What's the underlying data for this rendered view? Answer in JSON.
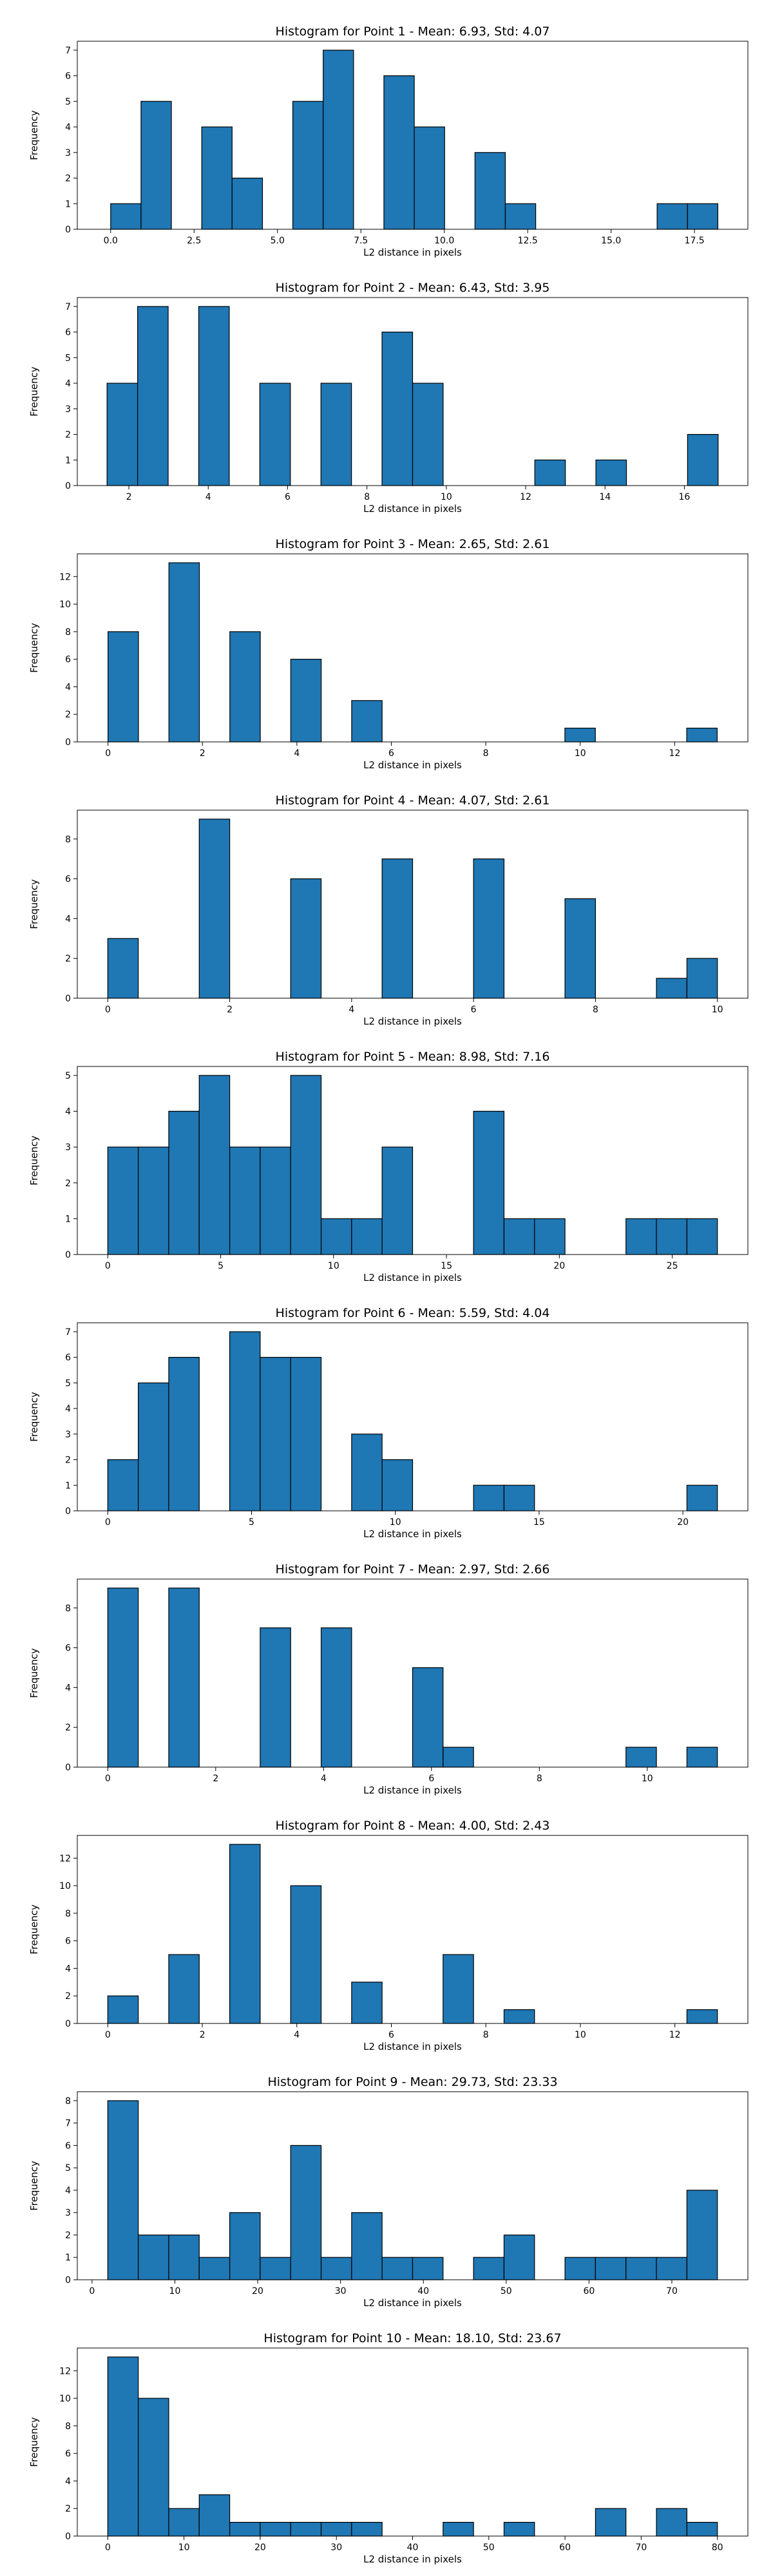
{
  "charts": [
    {
      "type": "bar",
      "title": "Histogram for Point 1 - Mean: 6.93, Std: 4.07",
      "xlabel": "L2 distance in pixels",
      "ylabel": "Frequency",
      "bins": {
        "start": 0.0,
        "width": 0.91,
        "counts": [
          1,
          5,
          0,
          4,
          2,
          0,
          5,
          7,
          0,
          6,
          4,
          0,
          3,
          1,
          0,
          0,
          0,
          0,
          1,
          1
        ]
      },
      "xlim": [
        -1.0,
        19.1
      ],
      "ylim": [
        0,
        7.35
      ],
      "xticks": [
        0.0,
        2.5,
        5.0,
        7.5,
        10.0,
        12.5,
        15.0,
        17.5
      ],
      "xtick_labels": [
        "0.0",
        "2.5",
        "5.0",
        "7.5",
        "10.0",
        "12.5",
        "15.0",
        "17.5"
      ],
      "yticks": [
        0,
        1,
        2,
        3,
        4,
        5,
        6,
        7
      ],
      "ytick_labels": [
        "0",
        "1",
        "2",
        "3",
        "4",
        "5",
        "6",
        "7"
      ]
    },
    {
      "type": "bar",
      "title": "Histogram for Point 2 - Mean: 6.43, Std: 3.95",
      "xlabel": "L2 distance in pixels",
      "ylabel": "Frequency",
      "bins": {
        "start": 1.45,
        "width": 0.77,
        "counts": [
          4,
          7,
          0,
          7,
          0,
          4,
          0,
          4,
          0,
          6,
          4,
          0,
          0,
          0,
          1,
          0,
          1,
          0,
          0,
          2
        ]
      },
      "xlim": [
        0.7,
        17.6
      ],
      "ylim": [
        0,
        7.35
      ],
      "xticks": [
        2,
        4,
        6,
        8,
        10,
        12,
        14,
        16
      ],
      "xtick_labels": [
        "2",
        "4",
        "6",
        "8",
        "10",
        "12",
        "14",
        "16"
      ],
      "yticks": [
        0,
        1,
        2,
        3,
        4,
        5,
        6,
        7
      ],
      "ytick_labels": [
        "0",
        "1",
        "2",
        "3",
        "4",
        "5",
        "6",
        "7"
      ]
    },
    {
      "type": "bar",
      "title": "Histogram for Point 3 - Mean: 2.65, Std: 2.61",
      "xlabel": "L2 distance in pixels",
      "ylabel": "Frequency",
      "bins": {
        "start": 0.0,
        "width": 0.645,
        "counts": [
          8,
          0,
          13,
          0,
          8,
          0,
          6,
          0,
          3,
          0,
          0,
          0,
          0,
          0,
          0,
          1,
          0,
          0,
          0,
          1
        ]
      },
      "xlim": [
        -0.65,
        13.55
      ],
      "ylim": [
        0,
        13.65
      ],
      "xticks": [
        0,
        2,
        4,
        6,
        8,
        10,
        12
      ],
      "xtick_labels": [
        "0",
        "2",
        "4",
        "6",
        "8",
        "10",
        "12"
      ],
      "yticks": [
        0,
        2,
        4,
        6,
        8,
        10,
        12
      ],
      "ytick_labels": [
        "0",
        "2",
        "4",
        "6",
        "8",
        "10",
        "12"
      ]
    },
    {
      "type": "bar",
      "title": "Histogram for Point 4 - Mean: 4.07, Std: 2.61",
      "xlabel": "L2 distance in pixels",
      "ylabel": "Frequency",
      "bins": {
        "start": 0.0,
        "width": 0.5,
        "counts": [
          3,
          0,
          0,
          9,
          0,
          0,
          6,
          0,
          0,
          7,
          0,
          0,
          7,
          0,
          0,
          5,
          0,
          0,
          1,
          2
        ]
      },
      "xlim": [
        -0.5,
        10.5
      ],
      "ylim": [
        0,
        9.45
      ],
      "xticks": [
        0,
        2,
        4,
        6,
        8,
        10
      ],
      "xtick_labels": [
        "0",
        "2",
        "4",
        "6",
        "8",
        "10"
      ],
      "yticks": [
        0,
        2,
        4,
        6,
        8
      ],
      "ytick_labels": [
        "0",
        "2",
        "4",
        "6",
        "8"
      ]
    },
    {
      "type": "bar",
      "title": "Histogram for Point 5 - Mean: 8.98, Std: 7.16",
      "xlabel": "L2 distance in pixels",
      "ylabel": "Frequency",
      "bins": {
        "start": 0.0,
        "width": 1.35,
        "counts": [
          3,
          3,
          4,
          5,
          3,
          3,
          5,
          1,
          1,
          3,
          0,
          0,
          4,
          1,
          1,
          0,
          0,
          1,
          1,
          1
        ]
      },
      "xlim": [
        -1.35,
        28.35
      ],
      "ylim": [
        0,
        5.25
      ],
      "xticks": [
        0,
        5,
        10,
        15,
        20,
        25
      ],
      "xtick_labels": [
        "0",
        "5",
        "10",
        "15",
        "20",
        "25"
      ],
      "yticks": [
        0,
        1,
        2,
        3,
        4,
        5
      ],
      "ytick_labels": [
        "0",
        "1",
        "2",
        "3",
        "4",
        "5"
      ]
    },
    {
      "type": "bar",
      "title": "Histogram for Point 6 - Mean: 5.59, Std: 4.04",
      "xlabel": "L2 distance in pixels",
      "ylabel": "Frequency",
      "bins": {
        "start": 0.0,
        "width": 1.06,
        "counts": [
          2,
          5,
          6,
          0,
          7,
          6,
          6,
          0,
          3,
          2,
          0,
          0,
          1,
          1,
          0,
          0,
          0,
          0,
          0,
          1
        ]
      },
      "xlim": [
        -1.06,
        22.26
      ],
      "ylim": [
        0,
        7.35
      ],
      "xticks": [
        0,
        5,
        10,
        15,
        20
      ],
      "xtick_labels": [
        "0",
        "5",
        "10",
        "15",
        "20"
      ],
      "yticks": [
        0,
        1,
        2,
        3,
        4,
        5,
        6,
        7
      ],
      "ytick_labels": [
        "0",
        "1",
        "2",
        "3",
        "4",
        "5",
        "6",
        "7"
      ]
    },
    {
      "type": "bar",
      "title": "Histogram for Point 7 - Mean: 2.97, Std: 2.66",
      "xlabel": "L2 distance in pixels",
      "ylabel": "Frequency",
      "bins": {
        "start": 0.0,
        "width": 0.565,
        "counts": [
          9,
          0,
          9,
          0,
          0,
          7,
          0,
          7,
          0,
          0,
          5,
          1,
          0,
          0,
          0,
          0,
          0,
          1,
          0,
          1
        ]
      },
      "xlim": [
        -0.565,
        11.865
      ],
      "ylim": [
        0,
        9.45
      ],
      "xticks": [
        0,
        2,
        4,
        6,
        8,
        10
      ],
      "xtick_labels": [
        "0",
        "2",
        "4",
        "6",
        "8",
        "10"
      ],
      "yticks": [
        0,
        2,
        4,
        6,
        8
      ],
      "ytick_labels": [
        "0",
        "2",
        "4",
        "6",
        "8"
      ]
    },
    {
      "type": "bar",
      "title": "Histogram for Point 8 - Mean: 4.00, Std: 2.43",
      "xlabel": "L2 distance in pixels",
      "ylabel": "Frequency",
      "bins": {
        "start": 0.0,
        "width": 0.645,
        "counts": [
          2,
          0,
          5,
          0,
          13,
          0,
          10,
          0,
          3,
          0,
          0,
          5,
          0,
          1,
          0,
          0,
          0,
          0,
          0,
          1
        ]
      },
      "xlim": [
        -0.645,
        13.545
      ],
      "ylim": [
        0,
        13.65
      ],
      "xticks": [
        0,
        2,
        4,
        6,
        8,
        10,
        12
      ],
      "xtick_labels": [
        "0",
        "2",
        "4",
        "6",
        "8",
        "10",
        "12"
      ],
      "yticks": [
        0,
        2,
        4,
        6,
        8,
        10,
        12
      ],
      "ytick_labels": [
        "0",
        "2",
        "4",
        "6",
        "8",
        "10",
        "12"
      ]
    },
    {
      "type": "bar",
      "title": "Histogram for Point 9 - Mean: 29.73, Std: 23.33",
      "xlabel": "L2 distance in pixels",
      "ylabel": "Frequency",
      "bins": {
        "start": 1.9,
        "width": 3.68,
        "counts": [
          8,
          2,
          2,
          1,
          3,
          1,
          6,
          1,
          3,
          1,
          1,
          0,
          1,
          2,
          0,
          1,
          1,
          1,
          1,
          4
        ]
      },
      "xlim": [
        -1.78,
        79.18
      ],
      "ylim": [
        0,
        8.4
      ],
      "xticks": [
        0,
        10,
        20,
        30,
        40,
        50,
        60,
        70
      ],
      "xtick_labels": [
        "0",
        "10",
        "20",
        "30",
        "40",
        "50",
        "60",
        "70"
      ],
      "yticks": [
        0,
        1,
        2,
        3,
        4,
        5,
        6,
        7,
        8
      ],
      "ytick_labels": [
        "0",
        "1",
        "2",
        "3",
        "4",
        "5",
        "6",
        "7",
        "8"
      ]
    },
    {
      "type": "bar",
      "title": "Histogram for Point 10 - Mean: 18.10, Std: 23.67",
      "xlabel": "L2 distance in pixels",
      "ylabel": "Frequency",
      "bins": {
        "start": 0.0,
        "width": 4.0,
        "counts": [
          13,
          10,
          2,
          3,
          1,
          1,
          1,
          1,
          1,
          0,
          0,
          1,
          0,
          1,
          0,
          0,
          2,
          0,
          2,
          1
        ]
      },
      "xlim": [
        -4.0,
        84.0
      ],
      "ylim": [
        0,
        13.65
      ],
      "xticks": [
        0,
        10,
        20,
        30,
        40,
        50,
        60,
        70,
        80
      ],
      "xtick_labels": [
        "0",
        "10",
        "20",
        "30",
        "40",
        "50",
        "60",
        "70",
        "80"
      ],
      "yticks": [
        0,
        2,
        4,
        6,
        8,
        10,
        12
      ],
      "ytick_labels": [
        "0",
        "2",
        "4",
        "6",
        "8",
        "10",
        "12"
      ]
    }
  ]
}
